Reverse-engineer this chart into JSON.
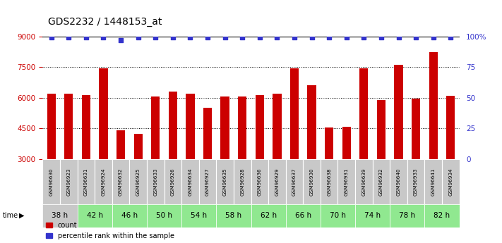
{
  "title": "GDS2232 / 1448153_at",
  "samples": [
    "GSM96630",
    "GSM96923",
    "GSM96631",
    "GSM96924",
    "GSM96632",
    "GSM96925",
    "GSM96633",
    "GSM96926",
    "GSM96634",
    "GSM96927",
    "GSM96635",
    "GSM96928",
    "GSM96636",
    "GSM96929",
    "GSM96637",
    "GSM96930",
    "GSM96638",
    "GSM96931",
    "GSM96639",
    "GSM96932",
    "GSM96640",
    "GSM96933",
    "GSM96641",
    "GSM96934"
  ],
  "counts": [
    6200,
    6200,
    6150,
    7450,
    4400,
    4250,
    6050,
    6300,
    6200,
    5500,
    6050,
    6050,
    6150,
    6200,
    7450,
    6600,
    4550,
    4600,
    7450,
    5900,
    7600,
    5950,
    8250,
    6100
  ],
  "percentile_ranks": [
    99,
    99,
    99,
    99,
    97,
    99,
    99,
    99,
    99,
    99,
    99,
    99,
    99,
    99,
    99,
    99,
    99,
    99,
    99,
    99,
    99,
    99,
    99,
    99
  ],
  "time_labels": [
    "38 h",
    "42 h",
    "46 h",
    "50 h",
    "54 h",
    "58 h",
    "62 h",
    "66 h",
    "70 h",
    "74 h",
    "78 h",
    "82 h"
  ],
  "bar_color": "#cc0000",
  "dot_color": "#3333cc",
  "left_axis_color": "#cc0000",
  "right_axis_color": "#3333cc",
  "ylim_left": [
    3000,
    9000
  ],
  "ylim_right": [
    0,
    100
  ],
  "yticks_left": [
    3000,
    4500,
    6000,
    7500,
    9000
  ],
  "yticks_right": [
    0,
    25,
    50,
    75,
    100
  ],
  "background_color": "#ffffff",
  "title_fontsize": 10,
  "bar_width": 0.5,
  "dot_size": 22,
  "sample_bg_color": "#c8c8c8",
  "time_color_gray": "#c8c8c8",
  "time_color_green": "#90e890"
}
